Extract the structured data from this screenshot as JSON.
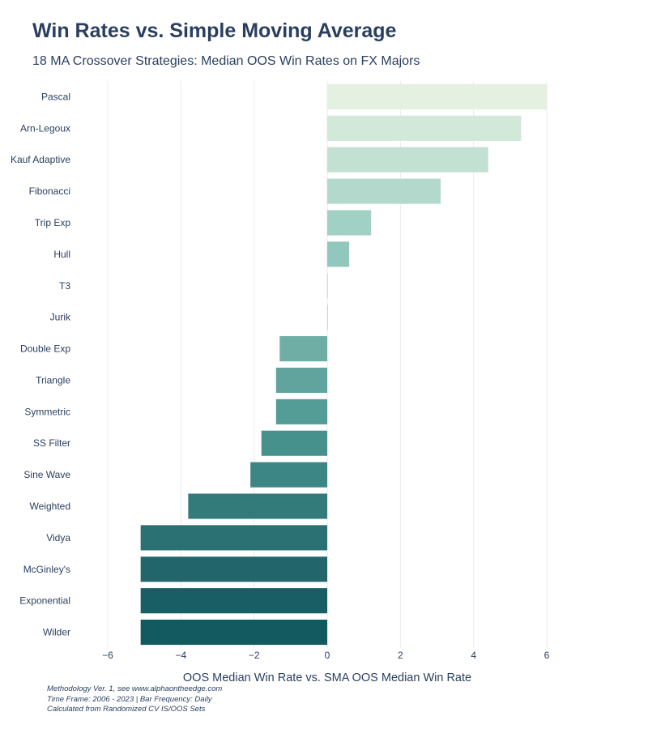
{
  "title": "Win Rates vs. Simple Moving Average",
  "subtitle": "18 MA Crossover Strategies: Median OOS Win Rates on FX Majors",
  "notes": [
    "Methodology Ver. 1, see www.alphaontheedge.com",
    "Time Frame: 2006 - 2023 | Bar Frequency: Daily",
    "Calculated from Randomized CV IS/OOS Sets"
  ],
  "chart_data": {
    "type": "bar",
    "orientation": "horizontal",
    "title": "Win Rates vs. Simple Moving Average",
    "xlabel": "OOS Median Win Rate vs. SMA OOS Median Win Rate",
    "ylabel": "",
    "xlim": [
      -6,
      6
    ],
    "xticks": [
      -6,
      -4,
      -2,
      0,
      2,
      4,
      6
    ],
    "xtick_labels": [
      "−6",
      "−4",
      "−2",
      "0",
      "2",
      "4",
      "6"
    ],
    "grid": true,
    "categories": [
      "Pascal",
      "Arn-Legoux",
      "Kauf Adaptive",
      "Fibonacci",
      "Trip Exp",
      "Hull",
      "T3",
      "Jurik",
      "Double Exp",
      "Triangle",
      "Symmetric",
      "SS Filter",
      "Sine Wave",
      "Weighted",
      "Vidya",
      "McGinley's",
      "Exponential",
      "Wilder"
    ],
    "values": [
      6.0,
      5.3,
      4.4,
      3.1,
      1.2,
      0.6,
      0.0,
      0.0,
      -1.3,
      -1.4,
      -1.4,
      -1.8,
      -2.1,
      -3.8,
      -5.1,
      -5.1,
      -5.1,
      -5.1
    ],
    "colors": [
      "#e4f0e0",
      "#d2e8d9",
      "#c3e1d3",
      "#b3d9cc",
      "#a1d0c4",
      "#91c7bc",
      "#85c0b5",
      "#7cb7ad",
      "#6eaea5",
      "#61a49d",
      "#549c96",
      "#47918d",
      "#3c8785",
      "#337a7a",
      "#2b7174",
      "#22666b",
      "#1a5e65",
      "#125960"
    ]
  }
}
